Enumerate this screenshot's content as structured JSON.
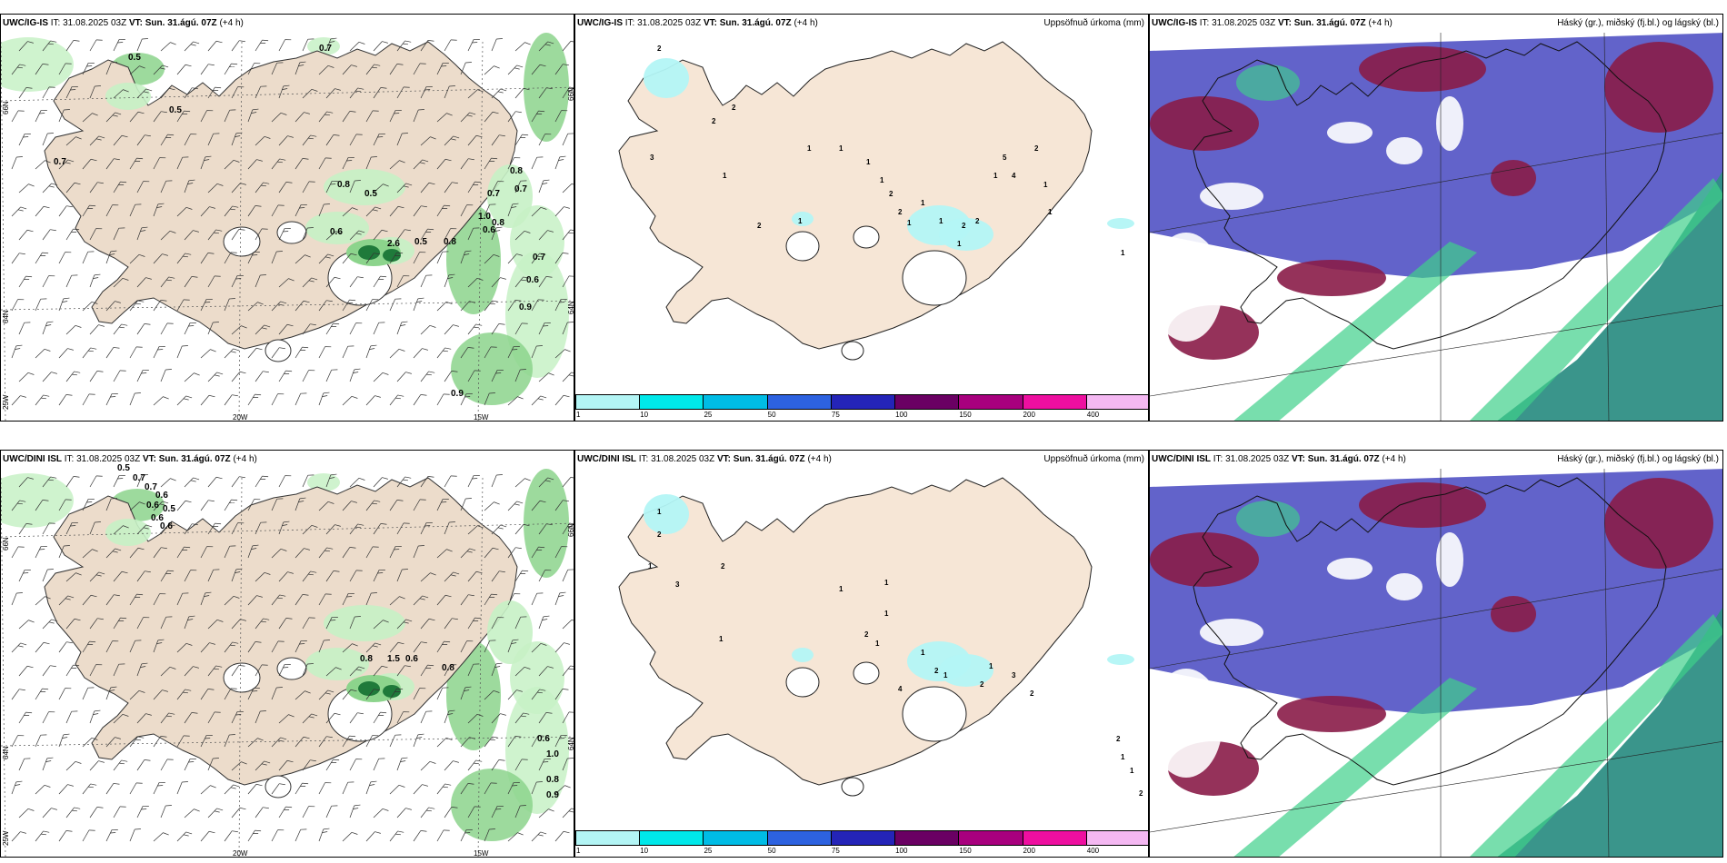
{
  "rows": [
    {
      "model": "UWC/IG-IS",
      "it_label": "IT:",
      "it_value": "31.08.2025 03Z",
      "vt_label": "VT:",
      "vt_value": "Sun. 31.ágú. 07Z",
      "lead": "(+4 h)",
      "left_labels": [
        "0.5",
        "0.7",
        "0.5",
        "0.7",
        "0.8",
        "0.5",
        "0.6",
        "2.6",
        "0.5",
        "0.8",
        "0.7",
        "0.8",
        "0.7",
        "1.0",
        "0.6",
        "0.8",
        "0.7",
        "0.6",
        "0.9",
        "0.9"
      ],
      "mid_labels": [
        "2",
        "3",
        "2",
        "2",
        "1",
        "2",
        "1",
        "1",
        "1",
        "1",
        "1",
        "2",
        "2",
        "1",
        "1",
        "1",
        "1",
        "2",
        "2",
        "1",
        "5",
        "4",
        "2",
        "1",
        "1",
        "1"
      ]
    },
    {
      "model": "UWC/DINI ISL",
      "it_label": "IT:",
      "it_value": "31.08.2025 03Z",
      "vt_label": "VT:",
      "vt_value": "Sun. 31.ágú. 07Z",
      "lead": "(+4 h)",
      "left_labels": [
        "0.5",
        "0.7",
        "0.7",
        "0.6",
        "0.6",
        "0.5",
        "0.6",
        "0.6",
        "0.8",
        "1.5",
        "0.6",
        "0.8",
        "0.6",
        "1.0",
        "0.8",
        "0.9"
      ],
      "mid_labels": [
        "1",
        "2",
        "1",
        "2",
        "3",
        "1",
        "1",
        "1",
        "2",
        "1",
        "1",
        "2",
        "1",
        "1",
        "1",
        "2",
        "4",
        "2",
        "3",
        "2",
        "1",
        "1",
        "2"
      ]
    }
  ],
  "precip_title": "Uppsöfnuð úrkoma (mm)",
  "cloud_title": "Háský (gr.), miðský (fj.bl.) og lágský (bl.)",
  "axis_labels": {
    "lat_upper": "66N",
    "lat_lower": "64N",
    "lon_west": "20W",
    "lon_east": "15W",
    "lon_edge": "25W"
  },
  "colorbar": {
    "ticks": [
      "1",
      "10",
      "25",
      "50",
      "75",
      "100",
      "150",
      "200",
      "400"
    ],
    "colors": [
      "#b3f5f5",
      "#00e8ea",
      "#00bce5",
      "#2d62e0",
      "#2424b8",
      "#6a0063",
      "#a8007e",
      "#ee0fa0",
      "#f4b8f2"
    ]
  },
  "palette": {
    "land": "#f6e6d6",
    "land_left": "#ecdccb",
    "green_light": "#c7f1c5",
    "green_mid": "#8cd48c",
    "green_dark": "#1f7a3a",
    "cloud_purple": "#5a5bc7",
    "cloud_red": "#8a1c48",
    "cloud_teal": "#2f8f85",
    "cloud_green": "#3fd08a"
  }
}
